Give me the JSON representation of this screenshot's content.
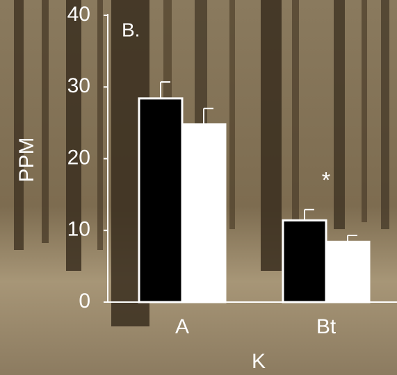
{
  "chart_data": {
    "type": "bar",
    "panel_label": "B.",
    "y_label": "PPM",
    "x_label": "K",
    "annotation": "*",
    "categories": [
      "A",
      "Bt"
    ],
    "series": [
      {
        "color": "#000000",
        "values": [
          28.4,
          11.4
        ],
        "errors": [
          2.3,
          1.5
        ]
      },
      {
        "color": "#ffffff",
        "values": [
          24.8,
          8.4
        ],
        "errors": [
          2.2,
          0.9
        ]
      }
    ],
    "ylim": [
      0,
      40
    ],
    "yticks": [
      0,
      10,
      20,
      30,
      40
    ]
  }
}
